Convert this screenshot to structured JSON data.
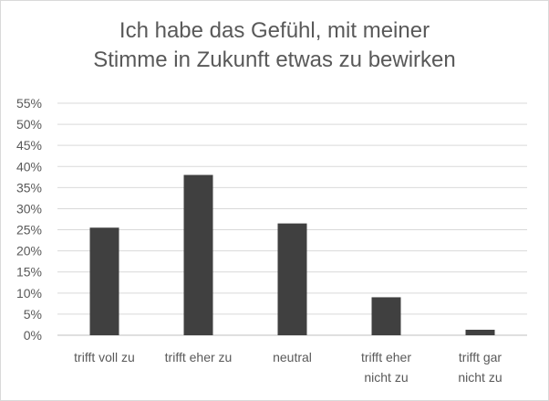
{
  "chart_data": {
    "type": "bar",
    "title_lines": [
      "Ich habe das Gefühl, mit meiner",
      "Stimme in Zukunft etwas zu bewirken"
    ],
    "categories": [
      [
        "trifft voll zu"
      ],
      [
        "trifft eher zu"
      ],
      [
        "neutral"
      ],
      [
        "trifft eher",
        "nicht zu"
      ],
      [
        "trifft gar",
        "nicht zu"
      ]
    ],
    "values": [
      25.5,
      38,
      26.5,
      9,
      1.3
    ],
    "y_ticks": [
      "0%",
      "5%",
      "10%",
      "15%",
      "20%",
      "25%",
      "30%",
      "35%",
      "40%",
      "45%",
      "50%",
      "55%"
    ],
    "ylim": [
      0,
      55
    ],
    "ystep": 5,
    "grid": true,
    "legend": "none",
    "bar_color": "#404040",
    "grid_color": "#d9d9d9"
  }
}
